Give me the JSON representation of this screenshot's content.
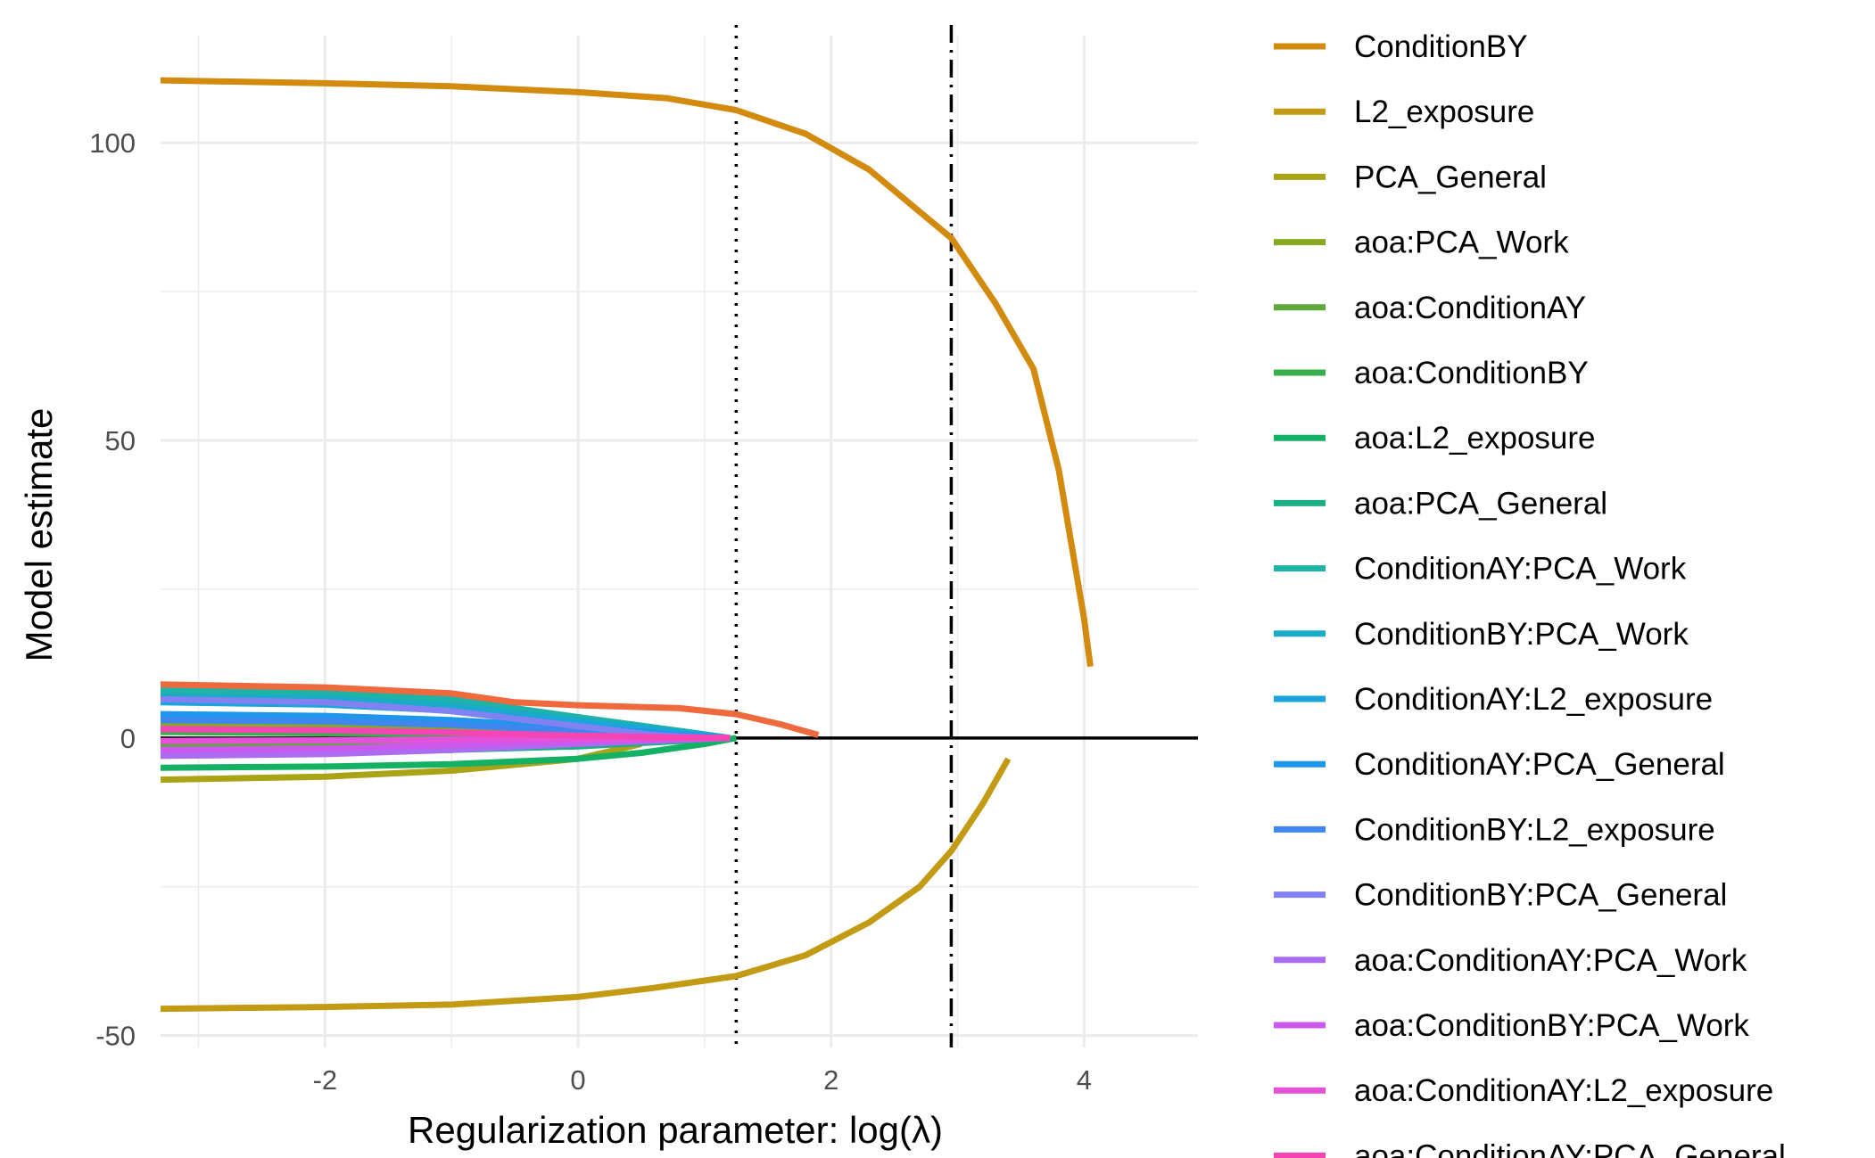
{
  "chart_data": {
    "type": "line",
    "title": "",
    "xlabel": "Regularization parameter: log(λ)",
    "ylabel": "Model estimate",
    "xlim": [
      -3.3,
      4.9
    ],
    "ylim": [
      -52,
      118
    ],
    "x_ticks": [
      -2,
      0,
      2,
      4
    ],
    "x_tick_labels": [
      "-2",
      "0",
      "2",
      "4"
    ],
    "y_ticks": [
      -50,
      0,
      50,
      100
    ],
    "y_tick_labels": [
      "-50",
      "0",
      "50",
      "100"
    ],
    "grid": true,
    "legend_position": "right",
    "reference_lines": [
      {
        "kind": "hline",
        "value": 0,
        "style": "solid"
      },
      {
        "kind": "vline",
        "value": 1.25,
        "style": "dotted"
      },
      {
        "kind": "vline",
        "value": 2.95,
        "style": "dotdash"
      }
    ],
    "series": [
      {
        "name": "ConditionBY",
        "color": "#D28A0F",
        "points": [
          [
            -3.3,
            110.5
          ],
          [
            -2,
            110
          ],
          [
            -1,
            109.5
          ],
          [
            0,
            108.5
          ],
          [
            0.7,
            107.5
          ],
          [
            1.25,
            105.5
          ],
          [
            1.8,
            101.5
          ],
          [
            2.3,
            95.5
          ],
          [
            2.95,
            84
          ],
          [
            3.3,
            73
          ],
          [
            3.6,
            62
          ],
          [
            3.8,
            45
          ],
          [
            4.0,
            20
          ],
          [
            4.05,
            12
          ]
        ]
      },
      {
        "name": "L2_exposure",
        "color": "#C39A13",
        "points": [
          [
            -3.3,
            -45.5
          ],
          [
            -2,
            -45.2
          ],
          [
            -1,
            -44.8
          ],
          [
            0,
            -43.5
          ],
          [
            0.6,
            -42
          ],
          [
            1.25,
            -40
          ],
          [
            1.8,
            -36.5
          ],
          [
            2.3,
            -31
          ],
          [
            2.7,
            -25
          ],
          [
            2.95,
            -19
          ],
          [
            3.2,
            -11
          ],
          [
            3.4,
            -3.5
          ]
        ]
      },
      {
        "name": "PCA_General",
        "color": "#A9A315",
        "points": [
          [
            -3.3,
            -7
          ],
          [
            -2,
            -6.5
          ],
          [
            -1,
            -5.5
          ],
          [
            0,
            -3.5
          ],
          [
            0.5,
            -1
          ]
        ]
      },
      {
        "name": "aoa:PCA_Work",
        "color": "#87A823",
        "points": [
          [
            -3.3,
            2.5
          ],
          [
            -2,
            2.2
          ],
          [
            -1,
            1.8
          ],
          [
            0,
            1.2
          ],
          [
            0.8,
            0.5
          ],
          [
            1.2,
            0
          ]
        ]
      },
      {
        "name": "aoa:ConditionAY",
        "color": "#5FA93A",
        "points": [
          [
            -3.3,
            -1.5
          ],
          [
            -2,
            -1.3
          ],
          [
            -1,
            -1
          ],
          [
            0,
            -0.6
          ],
          [
            0.8,
            -0.2
          ],
          [
            1.2,
            0
          ]
        ]
      },
      {
        "name": "aoa:ConditionBY",
        "color": "#38AE4C",
        "points": [
          [
            -3.3,
            1
          ],
          [
            -2,
            0.8
          ],
          [
            -1,
            0.6
          ],
          [
            0,
            0.3
          ],
          [
            0.8,
            0.1
          ],
          [
            1.2,
            0
          ]
        ]
      },
      {
        "name": "aoa:L2_exposure",
        "color": "#14B165",
        "points": [
          [
            -3.3,
            -5
          ],
          [
            -2,
            -4.8
          ],
          [
            -1,
            -4.4
          ],
          [
            0,
            -3.5
          ],
          [
            0.5,
            -2.5
          ],
          [
            1.0,
            -1
          ],
          [
            1.25,
            0
          ]
        ]
      },
      {
        "name": "aoa:PCA_General",
        "color": "#1AAF85",
        "points": [
          [
            -3.3,
            -2.5
          ],
          [
            -2,
            -2.3
          ],
          [
            -1,
            -2
          ],
          [
            0,
            -1.4
          ],
          [
            0.8,
            -0.5
          ],
          [
            1.2,
            0
          ]
        ]
      },
      {
        "name": "ConditionAY:PCA_Work",
        "color": "#1EB3A6",
        "points": [
          [
            -3.3,
            8
          ],
          [
            -2,
            7.5
          ],
          [
            -1,
            6.5
          ],
          [
            0,
            3.5
          ],
          [
            0.8,
            1.2
          ],
          [
            1.2,
            0
          ]
        ]
      },
      {
        "name": "ConditionBY:PCA_Work",
        "color": "#1AABC6",
        "points": [
          [
            -3.3,
            7
          ],
          [
            -2,
            6.6
          ],
          [
            -1,
            5.5
          ],
          [
            0,
            3
          ],
          [
            0.8,
            1
          ],
          [
            1.2,
            0
          ]
        ]
      },
      {
        "name": "ConditionAY:L2_exposure",
        "color": "#1AA5DC",
        "points": [
          [
            -3.3,
            6
          ],
          [
            -2,
            5.6
          ],
          [
            -1,
            4.6
          ],
          [
            0,
            2.5
          ],
          [
            0.8,
            0.8
          ],
          [
            1.2,
            0
          ]
        ]
      },
      {
        "name": "ConditionAY:PCA_General",
        "color": "#1E96EC",
        "points": [
          [
            -3.3,
            4
          ],
          [
            -2,
            3.7
          ],
          [
            -1,
            3
          ],
          [
            0,
            1.8
          ],
          [
            0.8,
            0.5
          ],
          [
            1.2,
            0
          ]
        ]
      },
      {
        "name": "ConditionBY:L2_exposure",
        "color": "#3F86EE",
        "points": [
          [
            -3.3,
            3
          ],
          [
            -2,
            2.8
          ],
          [
            -1,
            2.2
          ],
          [
            0,
            1.2
          ],
          [
            0.8,
            0.3
          ],
          [
            1.2,
            0
          ]
        ]
      },
      {
        "name": "ConditionBY:PCA_General",
        "color": "#8181F2",
        "points": [
          [
            -3.3,
            6.5
          ],
          [
            -2,
            6
          ],
          [
            -1,
            4.5
          ],
          [
            0,
            2
          ],
          [
            0.6,
            0.5
          ],
          [
            1.0,
            0
          ]
        ]
      },
      {
        "name": "aoa:ConditionAY:PCA_Work",
        "color": "#AC6CF2",
        "points": [
          [
            -3.3,
            -3
          ],
          [
            -2,
            -2.7
          ],
          [
            -1,
            -2
          ],
          [
            0,
            -1
          ],
          [
            0.8,
            -0.3
          ],
          [
            1.2,
            0
          ]
        ]
      },
      {
        "name": "aoa:ConditionBY:PCA_Work",
        "color": "#CC59EE",
        "points": [
          [
            -3.3,
            -2
          ],
          [
            -2,
            -1.8
          ],
          [
            -1,
            -1.2
          ],
          [
            0,
            -0.6
          ],
          [
            0.8,
            -0.2
          ],
          [
            1.2,
            0
          ]
        ]
      },
      {
        "name": "aoa:ConditionAY:L2_exposure",
        "color": "#E551D8",
        "points": [
          [
            -3.3,
            -0.5
          ],
          [
            -2,
            -0.4
          ],
          [
            -1,
            -0.3
          ],
          [
            0,
            -0.1
          ],
          [
            0.8,
            0
          ],
          [
            1.2,
            0
          ]
        ]
      },
      {
        "name": "aoa:ConditionAY:PCA_General",
        "color": "#F545B4",
        "points": [
          [
            -3.3,
            1.5
          ],
          [
            -2,
            1.3
          ],
          [
            -1,
            0.9
          ],
          [
            0,
            0.4
          ],
          [
            0.8,
            0.1
          ],
          [
            1.2,
            0
          ]
        ]
      },
      {
        "name": "",
        "color": "#EE6A3C",
        "points": [
          [
            -3.3,
            9
          ],
          [
            -2,
            8.5
          ],
          [
            -1,
            7.5
          ],
          [
            -0.5,
            6
          ],
          [
            0,
            5.5
          ],
          [
            0.8,
            5
          ],
          [
            1.25,
            4
          ],
          [
            1.6,
            2.3
          ],
          [
            1.9,
            0.5
          ]
        ]
      }
    ]
  }
}
